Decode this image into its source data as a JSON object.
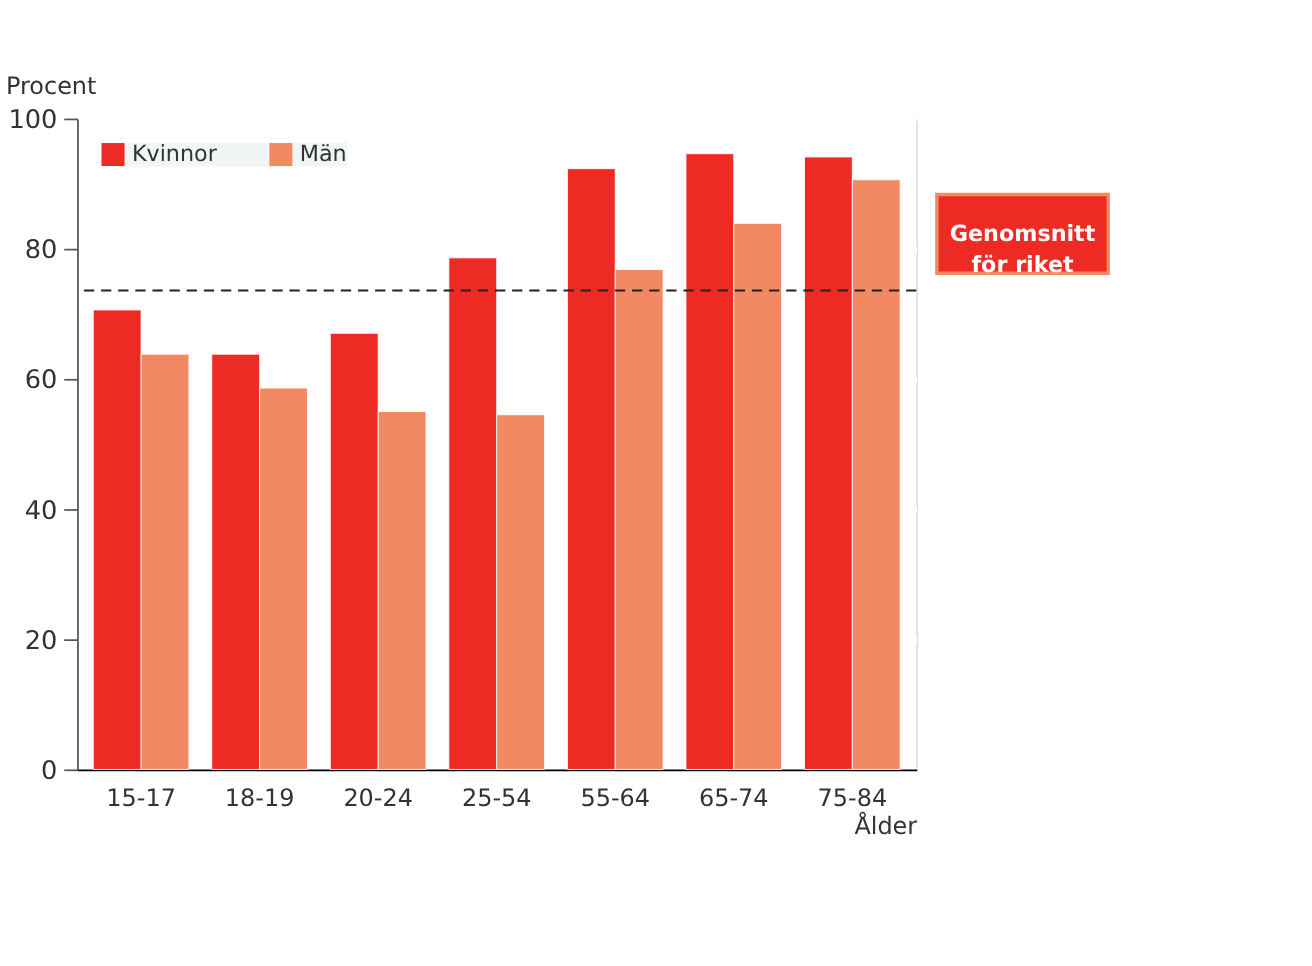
{
  "chart_data": {
    "type": "bar",
    "ylabel": "Procent",
    "xlabel": "Ålder",
    "categories": [
      "15-17",
      "18-19",
      "20-24",
      "25-54",
      "55-64",
      "65-74",
      "75-84"
    ],
    "series": [
      {
        "name": "Kvinnor",
        "color": "#ee2a24",
        "values": [
          70.6,
          63.8,
          67.0,
          78.6,
          92.3,
          94.6,
          94.1
        ]
      },
      {
        "name": "Män",
        "color": "#f18a62",
        "values": [
          63.8,
          58.6,
          55.0,
          54.5,
          76.8,
          83.9,
          90.6
        ]
      }
    ],
    "ylim": [
      0,
      100
    ],
    "yticks": [
      0,
      20,
      40,
      60,
      80,
      100
    ],
    "grid": "y",
    "legend": "top left",
    "ref_lines": [
      {
        "axis": "y",
        "value": 73.6,
        "label": "Genomsnitt för riket",
        "color": "#222222",
        "line_style": "dashed"
      }
    ]
  }
}
